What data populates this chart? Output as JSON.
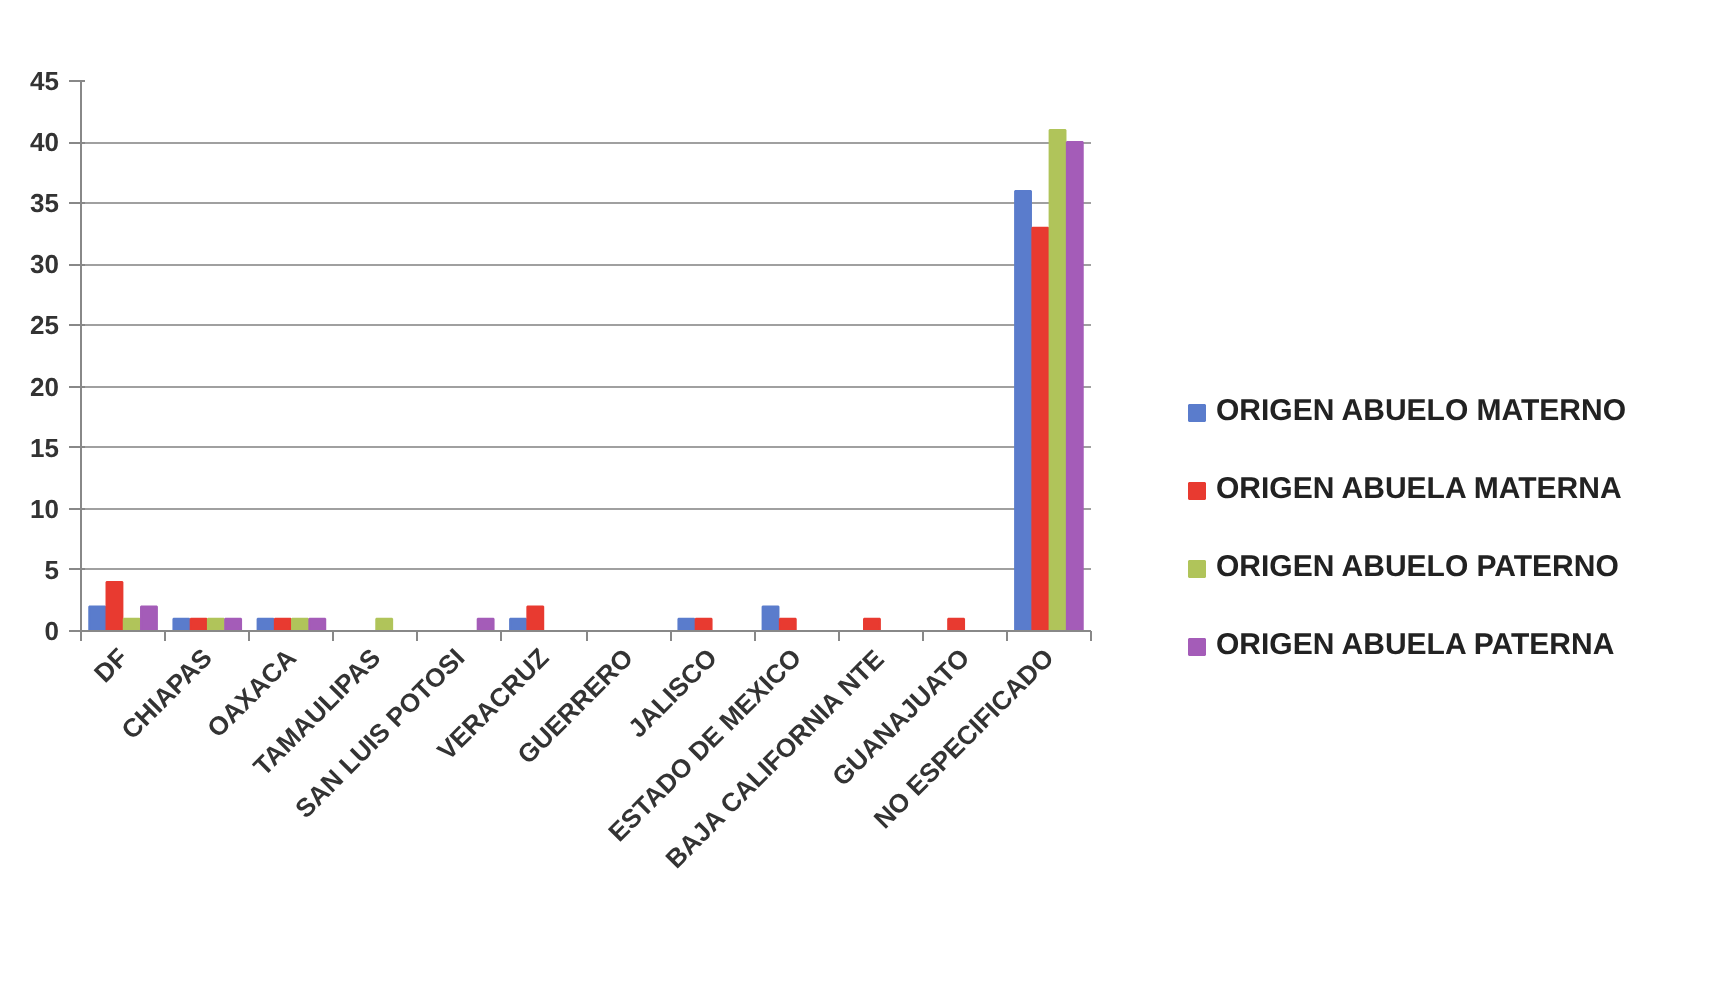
{
  "chart_data": {
    "type": "bar",
    "categories": [
      "DF",
      "CHIAPAS",
      "OAXACA",
      "TAMAULIPAS",
      "SAN LUIS POTOSI",
      "VERACRUZ",
      "GUERRERO",
      "JALISCO",
      "ESTADO DE MEXICO",
      "BAJA CALIFORNIA NTE",
      "GUANAJUATO",
      "NO ESPECIFICADO"
    ],
    "series": [
      {
        "name": "ORIGEN ABUELO MATERNO",
        "color": "#5a7ccc",
        "values": [
          2,
          1,
          1,
          0,
          0,
          1,
          0,
          1,
          2,
          0,
          0,
          36
        ]
      },
      {
        "name": "ORIGEN ABUELA MATERNA",
        "color": "#e83a30",
        "values": [
          4,
          1,
          1,
          0,
          0,
          2,
          0,
          1,
          1,
          1,
          1,
          33
        ]
      },
      {
        "name": "ORIGEN ABUELO PATERNO",
        "color": "#b0c45a",
        "values": [
          1,
          1,
          1,
          1,
          0,
          0,
          0,
          0,
          0,
          0,
          0,
          41
        ]
      },
      {
        "name": "ORIGEN ABUELA PATERNA",
        "color": "#a45cb8",
        "values": [
          2,
          1,
          1,
          0,
          1,
          0,
          0,
          0,
          0,
          0,
          0,
          40
        ]
      }
    ],
    "ylim": [
      0,
      45
    ],
    "yticks": [
      0,
      5,
      10,
      15,
      20,
      25,
      30,
      35,
      40,
      45
    ],
    "grid": "y",
    "legend": "right"
  }
}
